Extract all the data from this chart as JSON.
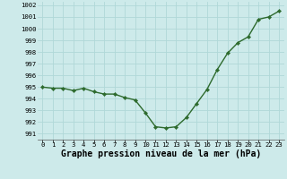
{
  "x": [
    0,
    1,
    2,
    3,
    4,
    5,
    6,
    7,
    8,
    9,
    10,
    11,
    12,
    13,
    14,
    15,
    16,
    17,
    18,
    19,
    20,
    21,
    22,
    23
  ],
  "y": [
    995.0,
    994.9,
    994.9,
    994.7,
    994.9,
    994.6,
    994.4,
    994.4,
    994.1,
    993.9,
    992.8,
    991.6,
    991.5,
    991.6,
    992.4,
    993.6,
    994.8,
    996.5,
    997.9,
    998.8,
    999.3,
    1000.8,
    1001.0,
    1001.5
  ],
  "xlim": [
    -0.5,
    23.5
  ],
  "ylim": [
    990.5,
    1002.3
  ],
  "yticks": [
    991,
    992,
    993,
    994,
    995,
    996,
    997,
    998,
    999,
    1000,
    1001,
    1002
  ],
  "xticks": [
    0,
    1,
    2,
    3,
    4,
    5,
    6,
    7,
    8,
    9,
    10,
    11,
    12,
    13,
    14,
    15,
    16,
    17,
    18,
    19,
    20,
    21,
    22,
    23
  ],
  "xlabel": "Graphe pression niveau de la mer (hPa)",
  "line_color": "#2d6a2d",
  "marker_color": "#2d6a2d",
  "bg_color": "#cdeaea",
  "grid_color": "#b0d8d8",
  "tick_fontsize": 5.2,
  "xlabel_fontsize": 7.0,
  "line_width": 1.0,
  "marker_size": 2.2
}
